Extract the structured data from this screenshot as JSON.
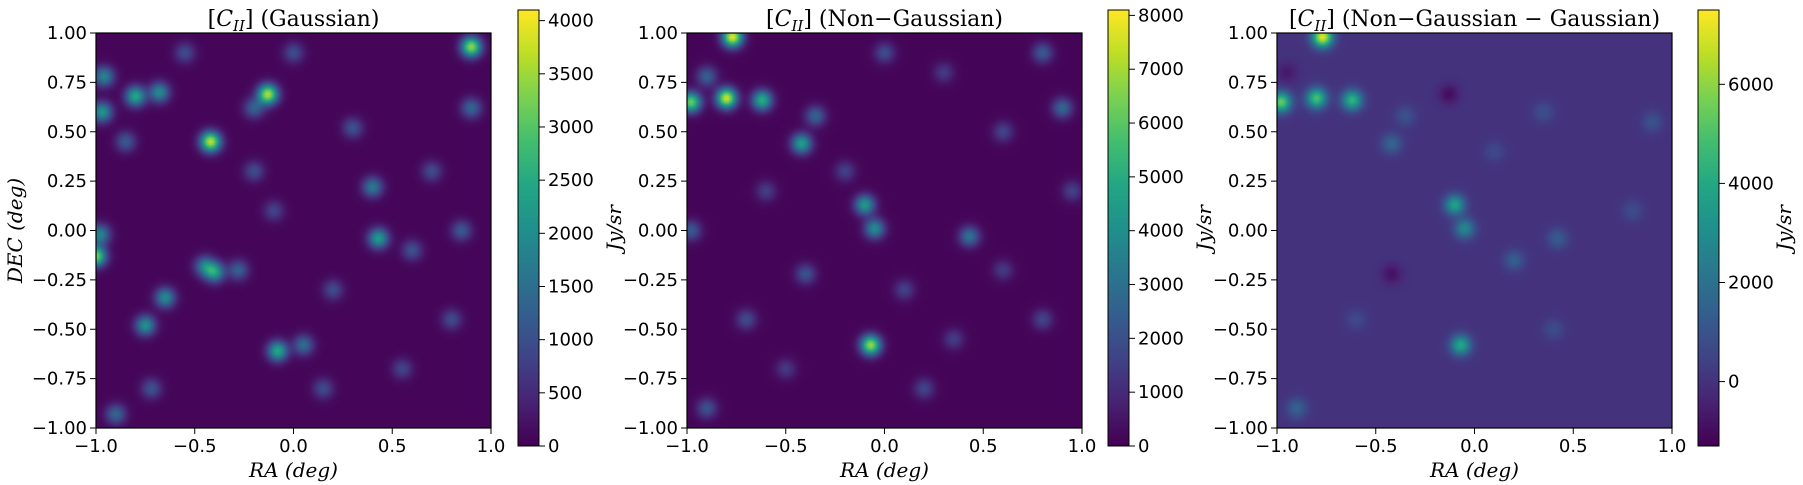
{
  "chart_data": [
    {
      "type": "heatmap",
      "title": "[C_II] (Gaussian)",
      "title_base": "C",
      "title_sub": "II",
      "title_suffix": "(Gaussian)",
      "xlabel": "RA (deg)",
      "ylabel": "DEC (deg)",
      "xlim": [
        -1.0,
        1.0
      ],
      "ylim": [
        -1.0,
        1.0
      ],
      "x_ticks": [
        "−1.0",
        "−0.5",
        "0.0",
        "0.5",
        "1.0"
      ],
      "y_ticks": [
        "1.00",
        "0.75",
        "0.50",
        "0.25",
        "0.00",
        "−0.25",
        "−0.50",
        "−0.75",
        "−1.00"
      ],
      "colorbar": {
        "label": "Jy/sr",
        "range": [
          0,
          4100
        ],
        "ticks": [
          0,
          500,
          1000,
          1500,
          2000,
          2500,
          3000,
          3500,
          4000
        ],
        "tick_labels": [
          "0",
          "500",
          "1000",
          "1500",
          "2000",
          "2500",
          "3000",
          "3500",
          "4000"
        ]
      },
      "colormap": "viridis",
      "background_value": 60,
      "sources": [
        {
          "x": -0.42,
          "y": 0.45,
          "value": 3700
        },
        {
          "x": -0.13,
          "y": 0.69,
          "value": 3600
        },
        {
          "x": 0.9,
          "y": 0.93,
          "value": 3400
        },
        {
          "x": -1.0,
          "y": -0.13,
          "value": 3200
        },
        {
          "x": -0.8,
          "y": 0.68,
          "value": 2400
        },
        {
          "x": -0.68,
          "y": 0.7,
          "value": 1900
        },
        {
          "x": -0.97,
          "y": 0.6,
          "value": 2100
        },
        {
          "x": -0.96,
          "y": 0.78,
          "value": 1800
        },
        {
          "x": -0.4,
          "y": -0.21,
          "value": 2200
        },
        {
          "x": -0.45,
          "y": -0.18,
          "value": 1600
        },
        {
          "x": -0.75,
          "y": -0.48,
          "value": 2000
        },
        {
          "x": -0.65,
          "y": -0.34,
          "value": 1900
        },
        {
          "x": -0.08,
          "y": -0.61,
          "value": 2400
        },
        {
          "x": 0.43,
          "y": -0.04,
          "value": 2200
        },
        {
          "x": 0.4,
          "y": 0.22,
          "value": 1600
        },
        {
          "x": -0.2,
          "y": 0.62,
          "value": 1200
        },
        {
          "x": 0.9,
          "y": 0.62,
          "value": 1300
        },
        {
          "x": -0.9,
          "y": -0.93,
          "value": 1300
        },
        {
          "x": -0.98,
          "y": -0.02,
          "value": 1800
        },
        {
          "x": -0.85,
          "y": 0.45,
          "value": 1100
        },
        {
          "x": 0.3,
          "y": 0.52,
          "value": 1000
        },
        {
          "x": 0.05,
          "y": -0.58,
          "value": 1400
        },
        {
          "x": -0.28,
          "y": -0.2,
          "value": 1200
        },
        {
          "x": -0.72,
          "y": -0.8,
          "value": 1000
        },
        {
          "x": 0.6,
          "y": -0.1,
          "value": 1000
        },
        {
          "x": 0.85,
          "y": 0.0,
          "value": 1100
        },
        {
          "x": 0.7,
          "y": 0.3,
          "value": 900
        },
        {
          "x": -0.2,
          "y": 0.3,
          "value": 900
        },
        {
          "x": 0.15,
          "y": -0.8,
          "value": 900
        },
        {
          "x": 0.55,
          "y": -0.7,
          "value": 800
        },
        {
          "x": 0.8,
          "y": -0.45,
          "value": 900
        },
        {
          "x": -0.55,
          "y": 0.9,
          "value": 900
        },
        {
          "x": 0.0,
          "y": 0.9,
          "value": 900
        },
        {
          "x": -0.1,
          "y": 0.1,
          "value": 800
        },
        {
          "x": 0.2,
          "y": -0.3,
          "value": 900
        }
      ]
    },
    {
      "type": "heatmap",
      "title": "[C_II] (Non−Gaussian)",
      "title_base": "C",
      "title_sub": "II",
      "title_suffix": "(Non−Gaussian)",
      "xlabel": "RA (deg)",
      "ylabel": "",
      "xlim": [
        -1.0,
        1.0
      ],
      "ylim": [
        -1.0,
        1.0
      ],
      "x_ticks": [
        "−1.0",
        "−0.5",
        "0.0",
        "0.5",
        "1.0"
      ],
      "y_ticks": [
        "1.00",
        "0.75",
        "0.50",
        "0.25",
        "0.00",
        "−0.25",
        "−0.50",
        "−0.75",
        "−1.00"
      ],
      "colorbar": {
        "label": "Jy/sr",
        "range": [
          0,
          8100
        ],
        "ticks": [
          0,
          1000,
          2000,
          3000,
          4000,
          5000,
          6000,
          7000,
          8000
        ],
        "tick_labels": [
          "0",
          "1000",
          "2000",
          "3000",
          "4000",
          "5000",
          "6000",
          "7000",
          "8000"
        ]
      },
      "colormap": "viridis",
      "background_value": 100,
      "sources": [
        {
          "x": -0.77,
          "y": 0.98,
          "value": 7800
        },
        {
          "x": -0.8,
          "y": 0.67,
          "value": 7500
        },
        {
          "x": -0.98,
          "y": 0.65,
          "value": 6200
        },
        {
          "x": -0.62,
          "y": 0.66,
          "value": 5000
        },
        {
          "x": -0.07,
          "y": -0.58,
          "value": 6800
        },
        {
          "x": -0.42,
          "y": 0.44,
          "value": 4500
        },
        {
          "x": -0.1,
          "y": 0.13,
          "value": 4300
        },
        {
          "x": -0.05,
          "y": 0.01,
          "value": 3800
        },
        {
          "x": 0.43,
          "y": -0.03,
          "value": 3000
        },
        {
          "x": -0.35,
          "y": 0.58,
          "value": 2500
        },
        {
          "x": -0.9,
          "y": 0.78,
          "value": 2400
        },
        {
          "x": 0.9,
          "y": 0.62,
          "value": 2600
        },
        {
          "x": -0.98,
          "y": -0.0,
          "value": 2200
        },
        {
          "x": -0.4,
          "y": -0.22,
          "value": 2000
        },
        {
          "x": -0.9,
          "y": -0.9,
          "value": 2000
        },
        {
          "x": 0.8,
          "y": 0.9,
          "value": 2200
        },
        {
          "x": 0.0,
          "y": 0.9,
          "value": 1800
        },
        {
          "x": 0.2,
          "y": -0.8,
          "value": 1600
        },
        {
          "x": -0.7,
          "y": -0.45,
          "value": 1800
        },
        {
          "x": 0.6,
          "y": 0.5,
          "value": 1600
        },
        {
          "x": 0.8,
          "y": -0.45,
          "value": 1600
        },
        {
          "x": 0.1,
          "y": -0.3,
          "value": 1500
        },
        {
          "x": -0.6,
          "y": 0.2,
          "value": 1400
        },
        {
          "x": 0.35,
          "y": -0.55,
          "value": 1400
        },
        {
          "x": 0.95,
          "y": 0.2,
          "value": 1500
        },
        {
          "x": -0.2,
          "y": 0.3,
          "value": 1500
        },
        {
          "x": 0.3,
          "y": 0.8,
          "value": 1300
        },
        {
          "x": -0.5,
          "y": -0.7,
          "value": 1300
        },
        {
          "x": 0.6,
          "y": -0.2,
          "value": 1300
        }
      ]
    },
    {
      "type": "heatmap",
      "title": "[C_II] (Non−Gaussian − Gaussian)",
      "title_base": "C",
      "title_sub": "II",
      "title_suffix": "(Non−Gaussian − Gaussian)",
      "xlabel": "RA (deg)",
      "ylabel": "",
      "xlim": [
        -1.0,
        1.0
      ],
      "ylim": [
        -1.0,
        1.0
      ],
      "x_ticks": [
        "−1.0",
        "−0.5",
        "0.0",
        "0.5",
        "1.0"
      ],
      "y_ticks": [
        "1.00",
        "0.75",
        "0.50",
        "0.25",
        "0.00",
        "−0.25",
        "−0.50",
        "−0.75",
        "−1.00"
      ],
      "colorbar": {
        "label": "Jy/sr",
        "range": [
          -1300,
          7500
        ],
        "ticks": [
          0,
          2000,
          4000,
          6000
        ],
        "tick_labels": [
          "0",
          "2000",
          "4000",
          "6000"
        ]
      },
      "colormap": "viridis",
      "background_value": 0,
      "sources": [
        {
          "x": -0.77,
          "y": 0.98,
          "value": 7300
        },
        {
          "x": -0.8,
          "y": 0.67,
          "value": 5000
        },
        {
          "x": -0.98,
          "y": 0.65,
          "value": 5500
        },
        {
          "x": -0.62,
          "y": 0.66,
          "value": 4500
        },
        {
          "x": -0.07,
          "y": -0.58,
          "value": 4000
        },
        {
          "x": -0.1,
          "y": 0.13,
          "value": 3800
        },
        {
          "x": -0.05,
          "y": 0.01,
          "value": 2800
        },
        {
          "x": -0.42,
          "y": 0.44,
          "value": 1600
        },
        {
          "x": 0.2,
          "y": -0.15,
          "value": 1400
        },
        {
          "x": -0.9,
          "y": -0.9,
          "value": 1500
        },
        {
          "x": 0.35,
          "y": 0.6,
          "value": 900
        },
        {
          "x": -0.35,
          "y": 0.58,
          "value": 1000
        },
        {
          "x": 0.9,
          "y": 0.55,
          "value": 1000
        },
        {
          "x": -0.42,
          "y": -0.22,
          "value": -900
        },
        {
          "x": -0.13,
          "y": 0.69,
          "value": -1000
        },
        {
          "x": 0.42,
          "y": -0.04,
          "value": 1300
        },
        {
          "x": -0.95,
          "y": 0.8,
          "value": -700
        },
        {
          "x": 0.4,
          "y": -0.5,
          "value": 800
        },
        {
          "x": 0.8,
          "y": 0.1,
          "value": 800
        },
        {
          "x": -0.6,
          "y": -0.45,
          "value": 700
        },
        {
          "x": 0.1,
          "y": 0.4,
          "value": 700
        }
      ]
    }
  ]
}
